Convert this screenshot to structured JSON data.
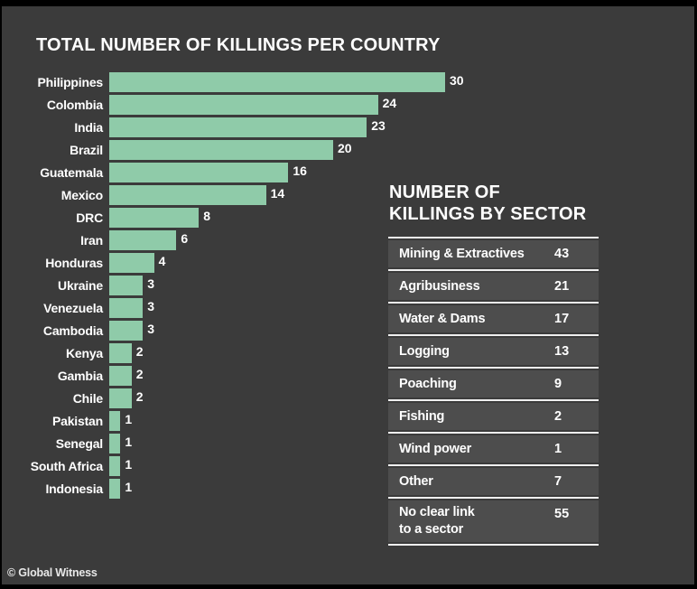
{
  "page": {
    "credit": "© Global Witness",
    "colors": {
      "background": "#3B3B3B",
      "frame": "#000000",
      "bar": "#8FCBA9",
      "table_row_bg": "#4D4D4D",
      "separator": "#EFEFEF",
      "text": "#FFFFFF"
    }
  },
  "bar_chart": {
    "title": "TOTAL NUMBER OF KILLINGS PER COUNTRY",
    "items": [
      {
        "label": "Philippines",
        "value": 30
      },
      {
        "label": "Colombia",
        "value": 24
      },
      {
        "label": "India",
        "value": 23
      },
      {
        "label": "Brazil",
        "value": 20
      },
      {
        "label": "Guatemala",
        "value": 16
      },
      {
        "label": "Mexico",
        "value": 14
      },
      {
        "label": "DRC",
        "value": 8
      },
      {
        "label": "Iran",
        "value": 6
      },
      {
        "label": "Honduras",
        "value": 4
      },
      {
        "label": "Ukraine",
        "value": 3
      },
      {
        "label": "Venezuela",
        "value": 3
      },
      {
        "label": "Cambodia",
        "value": 3
      },
      {
        "label": "Kenya",
        "value": 2
      },
      {
        "label": "Gambia",
        "value": 2
      },
      {
        "label": "Chile",
        "value": 2
      },
      {
        "label": "Pakistan",
        "value": 1
      },
      {
        "label": "Senegal",
        "value": 1
      },
      {
        "label": "South Africa",
        "value": 1
      },
      {
        "label": "Indonesia",
        "value": 1
      }
    ]
  },
  "sector_table": {
    "title": "NUMBER OF\nKILLINGS BY SECTOR",
    "rows": [
      {
        "label": "Mining & Extractives",
        "value": 43
      },
      {
        "label": "Agribusiness",
        "value": 21
      },
      {
        "label": "Water & Dams",
        "value": 17
      },
      {
        "label": "Logging",
        "value": 13
      },
      {
        "label": "Poaching",
        "value": 9
      },
      {
        "label": "Fishing",
        "value": 2
      },
      {
        "label": "Wind power",
        "value": 1
      },
      {
        "label": "Other",
        "value": 7
      },
      {
        "label": "No clear link\nto a sector",
        "value": 55
      }
    ]
  },
  "chart_data": [
    {
      "type": "bar",
      "orientation": "horizontal",
      "title": "TOTAL NUMBER OF KILLINGS PER COUNTRY",
      "categories": [
        "Philippines",
        "Colombia",
        "India",
        "Brazil",
        "Guatemala",
        "Mexico",
        "DRC",
        "Iran",
        "Honduras",
        "Ukraine",
        "Venezuela",
        "Cambodia",
        "Kenya",
        "Gambia",
        "Chile",
        "Pakistan",
        "Senegal",
        "South Africa",
        "Indonesia"
      ],
      "values": [
        30,
        24,
        23,
        20,
        16,
        14,
        8,
        6,
        4,
        3,
        3,
        3,
        2,
        2,
        2,
        1,
        1,
        1,
        1
      ],
      "xlabel": "",
      "ylabel": "",
      "xlim": [
        0,
        30
      ],
      "grid": false,
      "legend": false,
      "data_labels": true,
      "bar_color": "#8FCBA9"
    },
    {
      "type": "table",
      "title": "NUMBER OF KILLINGS BY SECTOR",
      "categories": [
        "Mining & Extractives",
        "Agribusiness",
        "Water & Dams",
        "Logging",
        "Poaching",
        "Fishing",
        "Wind power",
        "Other",
        "No clear link to a sector"
      ],
      "values": [
        43,
        21,
        17,
        13,
        9,
        2,
        1,
        7,
        55
      ]
    }
  ]
}
